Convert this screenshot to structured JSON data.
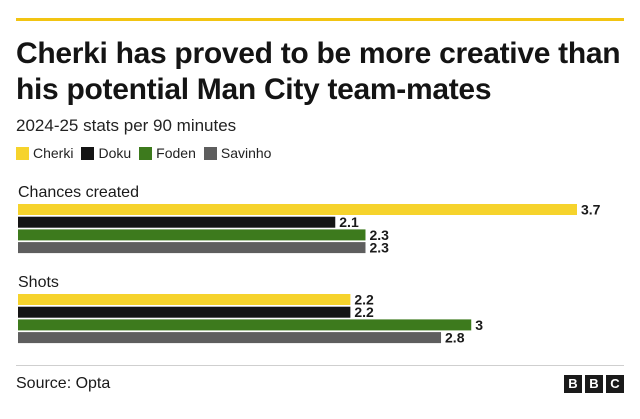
{
  "title": "Cherki has proved to be more creative than his potential Man City team-mates",
  "subtitle": "2024-25 stats per 90 minutes",
  "legend": [
    {
      "name": "Cherki",
      "color": "#f6d32c"
    },
    {
      "name": "Doku",
      "color": "#141414"
    },
    {
      "name": "Foden",
      "color": "#3d7a1d"
    },
    {
      "name": "Savinho",
      "color": "#5e5e5e"
    }
  ],
  "chart_data": {
    "type": "bar",
    "orientation": "horizontal",
    "categories": [
      "Chances created",
      "Shots"
    ],
    "series": [
      {
        "name": "Cherki",
        "color": "#f6d32c",
        "values": [
          3.7,
          2.2
        ],
        "labels": [
          "3.7",
          "2.2"
        ]
      },
      {
        "name": "Doku",
        "color": "#141414",
        "values": [
          2.1,
          2.2
        ],
        "labels": [
          "2.1",
          "2.2"
        ]
      },
      {
        "name": "Foden",
        "color": "#3d7a1d",
        "values": [
          2.3,
          3.0
        ],
        "labels": [
          "2.3",
          "3"
        ]
      },
      {
        "name": "Savinho",
        "color": "#5e5e5e",
        "values": [
          2.3,
          2.8
        ],
        "labels": [
          "2.3",
          "2.8"
        ]
      }
    ],
    "xlim": [
      0,
      3.7
    ],
    "grid": false,
    "legend_position": "top-left"
  },
  "source": "Source: Opta",
  "logo": [
    "B",
    "B",
    "C"
  ]
}
